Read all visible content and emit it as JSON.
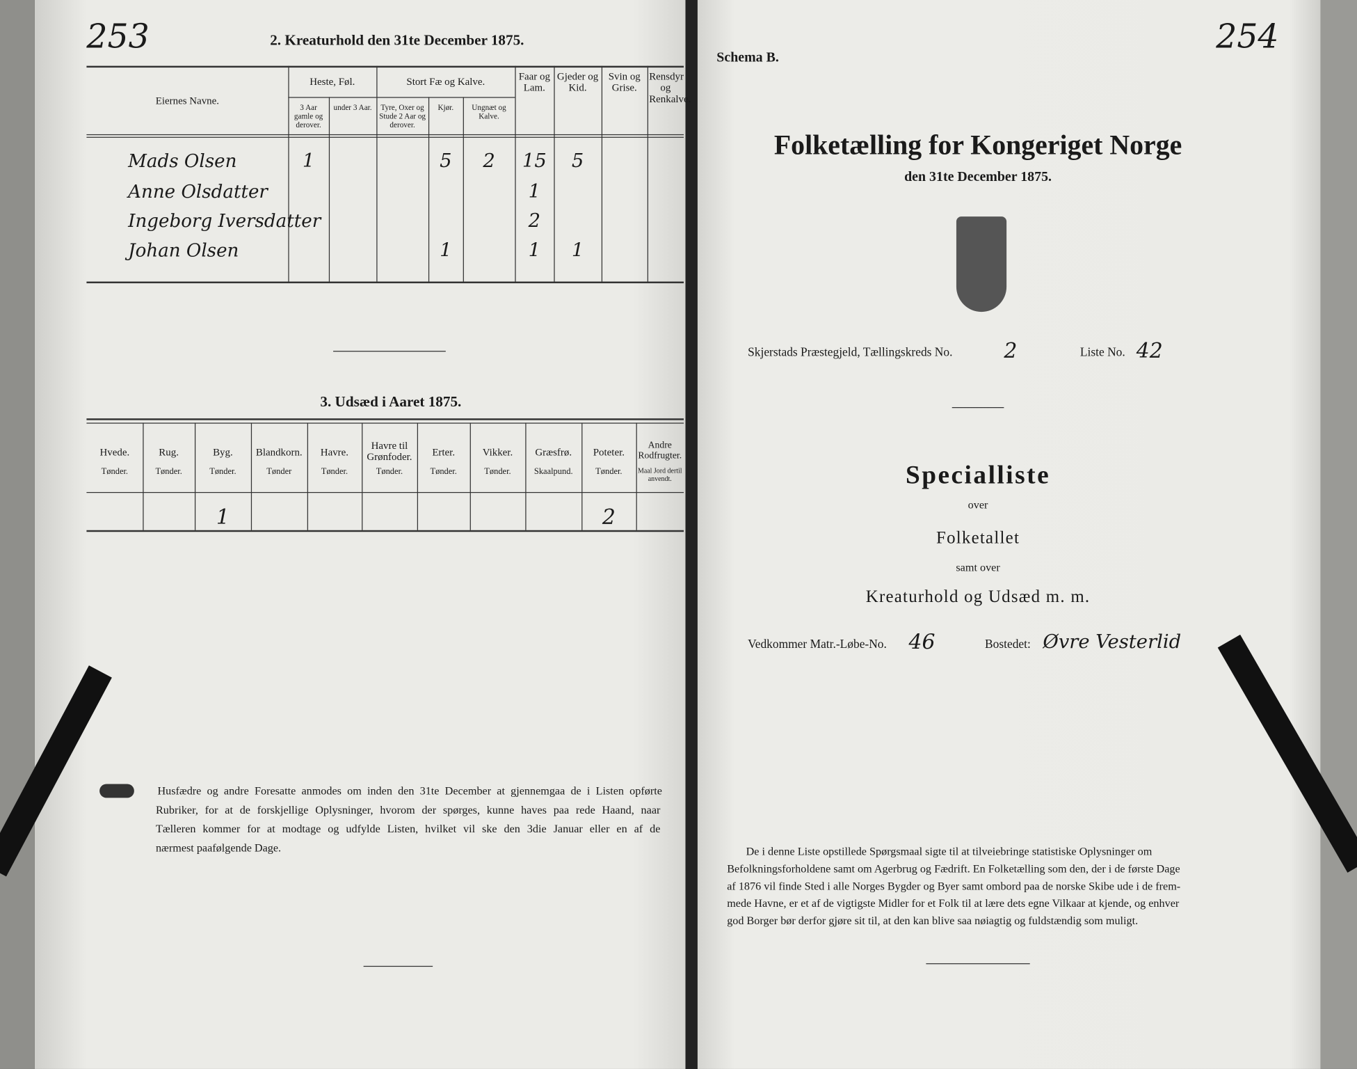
{
  "left_page": {
    "page_number": "253",
    "livestock": {
      "title": "2. Kreaturhold den 31te December 1875.",
      "group_headers": [
        "Heste, Føl.",
        "Stort Fæ og Kalve."
      ],
      "headers": [
        "Eiernes Navne.",
        "3 Aar gamle og derover.",
        "under 3 Aar.",
        "Tyre, Oxer og Stude 2 Aar og derover.",
        "Kjør.",
        "Ungnæt og Kalve.",
        "Faar og Lam.",
        "Gjeder og Kid.",
        "Svin og Grise.",
        "Rensdyr og Renkalve."
      ],
      "rows": [
        [
          "Mads Olsen",
          "1",
          null,
          null,
          "5",
          "2",
          "15",
          "5",
          null,
          null
        ],
        [
          "Anne Olsdatter",
          null,
          null,
          null,
          null,
          null,
          "1",
          null,
          null,
          null
        ],
        [
          "Ingeborg Iversdatter",
          null,
          null,
          null,
          null,
          null,
          "2",
          null,
          null,
          null
        ],
        [
          "Johan Olsen",
          null,
          null,
          null,
          "1",
          null,
          "1",
          "1",
          null,
          null
        ]
      ]
    },
    "seed": {
      "title": "3. Udsæd i Aaret 1875.",
      "headers": [
        "Hvede.",
        "Rug.",
        "Byg.",
        "Blandkorn.",
        "Havre.",
        "Havre til Grønfoder.",
        "Erter.",
        "Vikker.",
        "Græsfrø.",
        "Poteter.",
        "Andre Rodfrugter."
      ],
      "units": [
        "Tønder.",
        "Tønder.",
        "Tønder.",
        "Tønder",
        "Tønder.",
        "Tønder.",
        "Tønder.",
        "Tønder.",
        "Skaalpund.",
        "Tønder.",
        "Maal Jord dertil anvendt."
      ],
      "row": [
        null,
        null,
        "1",
        null,
        null,
        null,
        null,
        null,
        null,
        "2",
        null
      ]
    },
    "notice": [
      "Husfædre og andre Foresatte anmodes om inden den 31te December at gjennemgaa de i Listen opførte",
      "Rubriker, for at de forskjellige Oplysninger, hvorom der spørges, kunne haves paa rede Haand, naar",
      "Tælleren kommer for at modtage og udfylde Listen, hvilket vil ske den 3die Januar eller en af de",
      "nærmest paafølgende Dage."
    ]
  },
  "right_page": {
    "schema": "Schema B.",
    "page_number": "254",
    "title": "Folketælling for Kongeriget Norge",
    "date": "den 31te December 1875.",
    "parish": "Skjerstads Præstegjeld, Tællingskreds No.",
    "district_no": "2",
    "list_label": "Liste No.",
    "list_no": "42",
    "specialliste": "Specialliste",
    "over": "over",
    "folketallet": "Folketallet",
    "samt_over": "samt over",
    "kreaturhold": "Kreaturhold og Udsæd m. m.",
    "matr_label": "Vedkommer Matr.-Løbe-No.",
    "matr_no": "46",
    "bosted_label": "Bostedet:",
    "bosted": "Øvre Vesterlid",
    "paragraph": [
      "De i denne Liste opstillede Spørgsmaal sigte til at tilveiebringe statistiske Oplysninger om",
      "Befolkningsforholdene samt om Agerbrug og Fædrift.  En Folketælling som den, der i de første Dage",
      "af 1876 vil finde Sted i alle Norges Bygder og Byer samt ombord paa de norske Skibe ude i de frem-",
      "mede Havne, er et af de vigtigste Midler for et Folk til at lære dets egne Vilkaar at kjende, og enhver",
      "god Borger bør derfor gjøre sit til, at den kan blive saa nøiagtig og fuldstændig som muligt."
    ]
  }
}
